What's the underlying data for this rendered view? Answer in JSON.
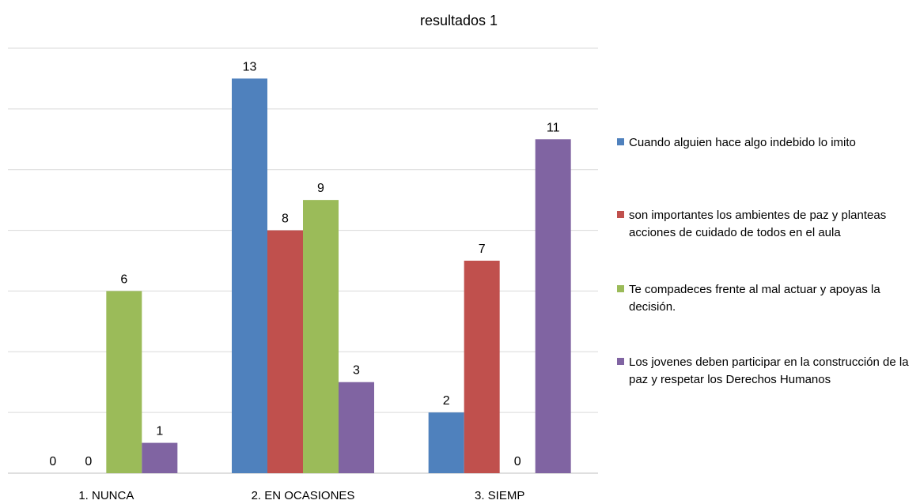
{
  "chart_data": {
    "type": "bar",
    "title": "resultados 1",
    "categories": [
      "1. NUNCA",
      "2. EN OCASIONES",
      "3. SIEMP"
    ],
    "series": [
      {
        "name": "Cuando alguien hace algo indebido lo imito",
        "color": "#4F81BD",
        "values": [
          0,
          13,
          2
        ]
      },
      {
        "name": "son importantes los ambientes de paz y planteas acciones de cuidado de todos en el aula",
        "color": "#C0504D",
        "values": [
          0,
          8,
          7
        ]
      },
      {
        "name": "Te compadeces frente al mal actuar y  apoyas la decisión.",
        "color": "#9BBB59",
        "values": [
          6,
          9,
          0
        ]
      },
      {
        "name": " Los jovenes deben participar en la construcción de la paz y respetar los Derechos Humanos",
        "color": "#8064A2",
        "values": [
          1,
          3,
          11
        ]
      }
    ],
    "ylim": [
      0,
      14
    ],
    "grid": true,
    "legend_position": "right",
    "data_labels": true
  }
}
